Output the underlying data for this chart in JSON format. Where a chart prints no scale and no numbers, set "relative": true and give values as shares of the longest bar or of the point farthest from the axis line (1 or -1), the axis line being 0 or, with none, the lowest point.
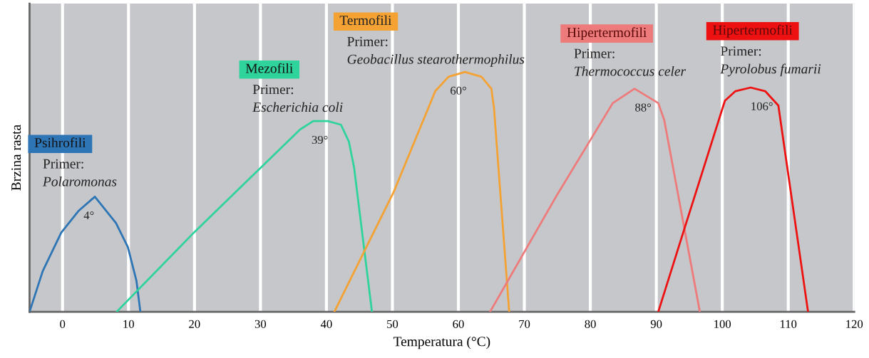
{
  "chart_data": {
    "type": "line",
    "relative": true,
    "xlabel": "Temperatura (°C)",
    "ylabel": "Brzina rasta",
    "xlim": [
      -5,
      120
    ],
    "xticks": [
      0,
      10,
      20,
      30,
      40,
      50,
      60,
      70,
      80,
      90,
      100,
      110,
      120
    ],
    "tick_labels": "x",
    "grid": "x",
    "marker": "none",
    "line_style": "solid",
    "series": [
      {
        "name": "Psihrofili",
        "color": "#2e75b6",
        "x": [
          -5,
          -3,
          -0.2,
          2.4,
          4.9,
          8.1,
          9.9,
          11.2,
          11.8
        ],
        "values": [
          0,
          0.17,
          0.33,
          0.42,
          0.48,
          0.37,
          0.27,
          0.13,
          0
        ]
      },
      {
        "name": "Mezofili",
        "color": "#2fd39c",
        "x": [
          8.2,
          19.9,
          30,
          36,
          38,
          40.2,
          42.2,
          43.4,
          44.2,
          46.9
        ],
        "values": [
          0,
          0.33,
          0.6,
          0.76,
          0.795,
          0.795,
          0.78,
          0.71,
          0.6,
          0
        ]
      },
      {
        "name": "Termofili",
        "color": "#f4a234",
        "x": [
          41.2,
          50.2,
          56.5,
          58.5,
          61,
          63.5,
          65,
          65.4,
          67.7
        ],
        "values": [
          0,
          0.5,
          0.92,
          0.98,
          1,
          0.98,
          0.93,
          0.85,
          0
        ]
      },
      {
        "name": "Hipertermofili",
        "color": "#ee7b7b",
        "x": [
          64.8,
          74.8,
          83.4,
          86.7,
          90.3,
          91.2,
          96.6
        ],
        "values": [
          0,
          0.48,
          0.87,
          0.93,
          0.87,
          0.8,
          0
        ]
      },
      {
        "name": "Hipertermofili",
        "color": "#ee1111",
        "x": [
          90.3,
          94.3,
          100.4,
          102,
          104.3,
          106.5,
          108.5,
          113
        ],
        "values": [
          0,
          0.35,
          0.88,
          0.92,
          0.935,
          0.92,
          0.86,
          0
        ]
      }
    ],
    "annotations": [
      "Primer:",
      "Polaromonas",
      "Primer:",
      "Escherichia coli",
      "Primer:",
      "Geobacillus stearothermophilus",
      "Primer:",
      "Thermococcus celer",
      "Primer:",
      "Pyrolobus fumarii",
      {
        "text": "4°",
        "x": 4,
        "y": 0.48
      },
      {
        "text": "39°",
        "x": 39,
        "y": 0.795
      },
      {
        "text": "60°",
        "x": 60,
        "y": 1
      },
      {
        "text": "88°",
        "x": 88,
        "y": 0.93
      },
      {
        "text": "106°",
        "x": 106,
        "y": 0.935
      }
    ]
  }
}
